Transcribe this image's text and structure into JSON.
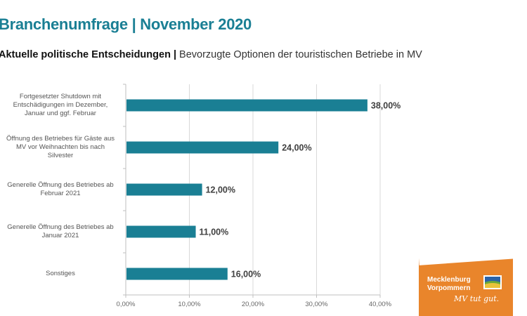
{
  "header": {
    "title": "Branchenumfrage | November 2020",
    "subtitle_bold": "Aktuelle politische Entscheidungen |",
    "subtitle_rest": " Bevorzugte Optionen der touristischen Betriebe in MV"
  },
  "chart_data": {
    "type": "bar",
    "orientation": "horizontal",
    "categories": [
      "Fortgesetzter Shutdown mit Entschädigungen im Dezember, Januar und ggf. Februar",
      "Öffnung des Betriebes für Gäste aus MV vor Weihnachten bis nach Silvester",
      "Generelle Öffnung des Betriebes ab Februar 2021",
      "Generelle Öffnung des Betriebes ab Januar 2021",
      "Sonstiges"
    ],
    "category_lines": [
      [
        "Fortgesetzter Shutdown mit",
        "Entschädigungen im Dezember,",
        "Januar und ggf. Februar"
      ],
      [
        "Öffnung des Betriebes für Gäste aus",
        "MV vor Weihnachten bis nach",
        "Silvester"
      ],
      [
        "Generelle Öffnung des Betriebes ab",
        "Februar 2021"
      ],
      [
        "Generelle Öffnung des Betriebes ab",
        "Januar 2021"
      ],
      [
        "Sonstiges"
      ]
    ],
    "values": [
      38.0,
      24.0,
      12.0,
      11.0,
      16.0
    ],
    "value_labels": [
      "38,00%",
      "24,00%",
      "12,00%",
      "11,00%",
      "16,00%"
    ],
    "xlim": [
      0,
      40
    ],
    "xticks": [
      0,
      10,
      20,
      30,
      40
    ],
    "xtick_labels": [
      "0,00%",
      "10,00%",
      "20,00%",
      "30,00%",
      "40,00%"
    ],
    "grid": true,
    "bar_color": "#1a7f94"
  },
  "logo": {
    "line1": "Mecklenburg",
    "line2": "Vorpommern",
    "slogan": "MV tut gut.",
    "color": "#e9852b"
  }
}
